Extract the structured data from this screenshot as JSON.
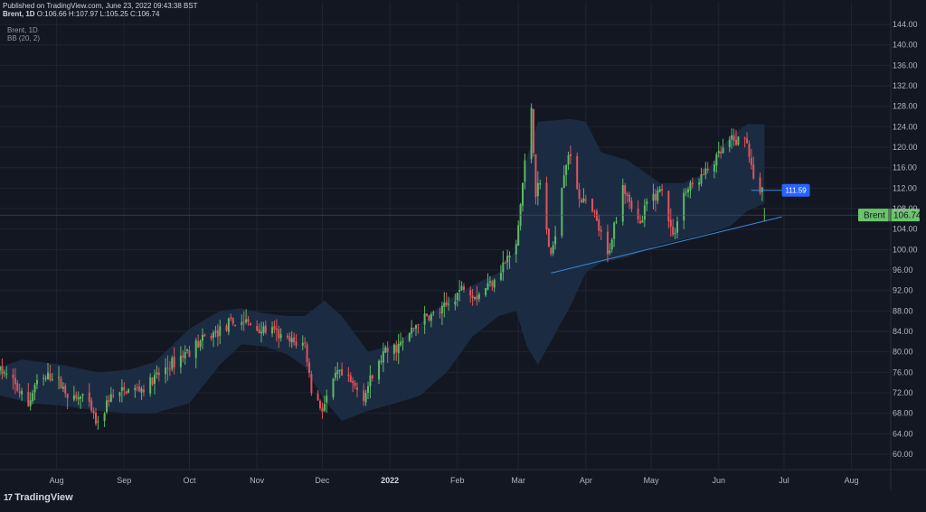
{
  "header": {
    "published": "Published on TradingView.com, June 23, 2022 09:43:38 BST",
    "symbol": "Brent, 1D",
    "ohlc": "O:106.66 H:107.97 L:105.25 C:106.74"
  },
  "legend": {
    "symbol": "Brent, 1D",
    "indicator": "BB (20, 2)"
  },
  "footer": {
    "logo_text": "TradingView",
    "logo_mark": "17"
  },
  "colors": {
    "background": "#131722",
    "grid": "#1f2433",
    "up": "#5fb866",
    "down": "#e0545c",
    "band_fill": "#1b2d44",
    "trendline": "#3a8be0",
    "axis_text": "#b2b5be",
    "price_label_bg": "#6cc46c",
    "level_label_bg": "#2962ff"
  },
  "chart_data": {
    "type": "candlestick",
    "symbol": "Brent",
    "timeframe": "1D",
    "indicator": "BB (20, 2)",
    "y_ticks": [
      "144.00",
      "140.00",
      "136.00",
      "132.00",
      "128.00",
      "124.00",
      "120.00",
      "116.00",
      "112.00",
      "108.00",
      "104.00",
      "100.00",
      "96.00",
      "92.00",
      "88.00",
      "84.00",
      "80.00",
      "76.00",
      "72.00",
      "68.00",
      "64.00",
      "60.00"
    ],
    "x_ticks": [
      {
        "label": "Aug",
        "date": "2021-08-01",
        "bold": false
      },
      {
        "label": "Sep",
        "date": "2021-09-01",
        "bold": false
      },
      {
        "label": "Oct",
        "date": "2021-10-01",
        "bold": false
      },
      {
        "label": "Nov",
        "date": "2021-11-01",
        "bold": false
      },
      {
        "label": "Dec",
        "date": "2021-12-01",
        "bold": false
      },
      {
        "label": "2022",
        "date": "2022-01-01",
        "bold": true
      },
      {
        "label": "Feb",
        "date": "2022-02-01",
        "bold": false
      },
      {
        "label": "Mar",
        "date": "2022-03-01",
        "bold": false
      },
      {
        "label": "Apr",
        "date": "2022-04-01",
        "bold": false
      },
      {
        "label": "May",
        "date": "2022-05-01",
        "bold": false
      },
      {
        "label": "Jun",
        "date": "2022-06-01",
        "bold": false
      },
      {
        "label": "Jul",
        "date": "2022-07-01",
        "bold": false
      },
      {
        "label": "Aug",
        "date": "2022-08-01",
        "bold": false
      }
    ],
    "x_range": [
      "2021-07-06",
      "2022-08-19"
    ],
    "y_range": [
      57,
      145.6
    ],
    "current_price": {
      "label": "Brent",
      "value": "106.74",
      "y": 106.74
    },
    "horizontal_level": {
      "value": "111.59",
      "y": 111.59,
      "from": "2022-06-16",
      "to": "2022-06-30"
    },
    "trendline": {
      "from": {
        "date": "2022-03-16",
        "y": 95.4
      },
      "to": {
        "date": "2022-06-30",
        "y": 106.4
      }
    },
    "price_path": [
      {
        "date": "2021-07-06",
        "price": 76.5
      },
      {
        "date": "2021-07-12",
        "price": 74.0
      },
      {
        "date": "2021-07-19",
        "price": 69.5
      },
      {
        "date": "2021-07-22",
        "price": 73.5
      },
      {
        "date": "2021-07-30",
        "price": 75.5
      },
      {
        "date": "2021-08-09",
        "price": 70.5
      },
      {
        "date": "2021-08-13",
        "price": 71.5
      },
      {
        "date": "2021-08-20",
        "price": 65.5
      },
      {
        "date": "2021-08-25",
        "price": 71.0
      },
      {
        "date": "2021-09-03",
        "price": 72.5
      },
      {
        "date": "2021-09-10",
        "price": 72.8
      },
      {
        "date": "2021-09-17",
        "price": 75.5
      },
      {
        "date": "2021-09-28",
        "price": 79.5
      },
      {
        "date": "2021-10-08",
        "price": 82.5
      },
      {
        "date": "2021-10-20",
        "price": 85.5
      },
      {
        "date": "2021-10-26",
        "price": 86.0
      },
      {
        "date": "2021-11-01",
        "price": 84.5
      },
      {
        "date": "2021-11-08",
        "price": 84.0
      },
      {
        "date": "2021-11-15",
        "price": 82.0
      },
      {
        "date": "2021-11-23",
        "price": 81.5
      },
      {
        "date": "2021-11-26",
        "price": 72.5
      },
      {
        "date": "2021-12-01",
        "price": 68.9
      },
      {
        "date": "2021-12-08",
        "price": 75.8
      },
      {
        "date": "2021-12-15",
        "price": 73.5
      },
      {
        "date": "2021-12-20",
        "price": 71.5
      },
      {
        "date": "2021-12-29",
        "price": 79.5
      },
      {
        "date": "2022-01-07",
        "price": 81.7
      },
      {
        "date": "2022-01-14",
        "price": 86.0
      },
      {
        "date": "2022-01-25",
        "price": 88.0
      },
      {
        "date": "2022-02-04",
        "price": 93.0
      },
      {
        "date": "2022-02-10",
        "price": 91.0
      },
      {
        "date": "2022-02-16",
        "price": 93.5
      },
      {
        "date": "2022-02-22",
        "price": 97.0
      },
      {
        "date": "2022-02-28",
        "price": 100.5
      },
      {
        "date": "2022-03-03",
        "price": 113.0
      },
      {
        "date": "2022-03-07",
        "price": 128.0
      },
      {
        "date": "2022-03-09",
        "price": 111.0
      },
      {
        "date": "2022-03-11",
        "price": 112.7
      },
      {
        "date": "2022-03-16",
        "price": 98.0
      },
      {
        "date": "2022-03-22",
        "price": 115.5
      },
      {
        "date": "2022-03-24",
        "price": 119.0
      },
      {
        "date": "2022-03-29",
        "price": 110.5
      },
      {
        "date": "2022-04-05",
        "price": 106.5
      },
      {
        "date": "2022-04-11",
        "price": 98.5
      },
      {
        "date": "2022-04-18",
        "price": 113.0
      },
      {
        "date": "2022-04-26",
        "price": 104.5
      },
      {
        "date": "2022-04-29",
        "price": 109.0
      },
      {
        "date": "2022-05-06",
        "price": 112.0
      },
      {
        "date": "2022-05-11",
        "price": 102.5
      },
      {
        "date": "2022-05-16",
        "price": 111.0
      },
      {
        "date": "2022-05-26",
        "price": 115.0
      },
      {
        "date": "2022-06-06",
        "price": 121.0
      },
      {
        "date": "2022-06-14",
        "price": 121.5
      },
      {
        "date": "2022-06-17",
        "price": 113.0
      },
      {
        "date": "2022-06-21",
        "price": 112.0
      },
      {
        "date": "2022-06-22",
        "price": 106.74
      }
    ],
    "bollinger": {
      "upper": [
        {
          "date": "2021-07-06",
          "y": 77.0
        },
        {
          "date": "2021-07-16",
          "y": 78.5
        },
        {
          "date": "2021-08-03",
          "y": 77.5
        },
        {
          "date": "2021-08-20",
          "y": 76.0
        },
        {
          "date": "2021-09-03",
          "y": 76.5
        },
        {
          "date": "2021-09-15",
          "y": 78.0
        },
        {
          "date": "2021-10-01",
          "y": 84.5
        },
        {
          "date": "2021-10-15",
          "y": 88.0
        },
        {
          "date": "2021-10-25",
          "y": 88.5
        },
        {
          "date": "2021-11-05",
          "y": 87.5
        },
        {
          "date": "2021-11-15",
          "y": 87.0
        },
        {
          "date": "2021-11-23",
          "y": 87.0
        },
        {
          "date": "2021-12-02",
          "y": 90.0
        },
        {
          "date": "2021-12-10",
          "y": 87.0
        },
        {
          "date": "2021-12-22",
          "y": 80.0
        },
        {
          "date": "2022-01-04",
          "y": 81.5
        },
        {
          "date": "2022-01-15",
          "y": 85.5
        },
        {
          "date": "2022-01-27",
          "y": 90.0
        },
        {
          "date": "2022-02-08",
          "y": 93.0
        },
        {
          "date": "2022-02-20",
          "y": 95.5
        },
        {
          "date": "2022-02-28",
          "y": 100.0
        },
        {
          "date": "2022-03-05",
          "y": 118.0
        },
        {
          "date": "2022-03-10",
          "y": 125.0
        },
        {
          "date": "2022-03-25",
          "y": 125.5
        },
        {
          "date": "2022-04-01",
          "y": 125.0
        },
        {
          "date": "2022-04-08",
          "y": 119.0
        },
        {
          "date": "2022-04-20",
          "y": 117.5
        },
        {
          "date": "2022-05-05",
          "y": 113.0
        },
        {
          "date": "2022-05-16",
          "y": 113.0
        },
        {
          "date": "2022-05-26",
          "y": 115.0
        },
        {
          "date": "2022-06-06",
          "y": 122.0
        },
        {
          "date": "2022-06-14",
          "y": 124.5
        },
        {
          "date": "2022-06-22",
          "y": 124.5
        }
      ],
      "lower": [
        {
          "date": "2021-07-06",
          "y": 71.5
        },
        {
          "date": "2021-07-20",
          "y": 70.0
        },
        {
          "date": "2021-08-03",
          "y": 69.5
        },
        {
          "date": "2021-08-20",
          "y": 68.5
        },
        {
          "date": "2021-09-03",
          "y": 68.0
        },
        {
          "date": "2021-09-15",
          "y": 68.0
        },
        {
          "date": "2021-10-01",
          "y": 70.0
        },
        {
          "date": "2021-10-15",
          "y": 77.5
        },
        {
          "date": "2021-10-25",
          "y": 81.5
        },
        {
          "date": "2021-11-05",
          "y": 81.0
        },
        {
          "date": "2021-11-15",
          "y": 79.5
        },
        {
          "date": "2021-11-23",
          "y": 77.0
        },
        {
          "date": "2021-12-02",
          "y": 70.5
        },
        {
          "date": "2021-12-10",
          "y": 66.5
        },
        {
          "date": "2021-12-22",
          "y": 68.5
        },
        {
          "date": "2022-01-04",
          "y": 70.0
        },
        {
          "date": "2022-01-15",
          "y": 71.5
        },
        {
          "date": "2022-01-27",
          "y": 76.0
        },
        {
          "date": "2022-02-08",
          "y": 83.0
        },
        {
          "date": "2022-02-20",
          "y": 87.0
        },
        {
          "date": "2022-02-28",
          "y": 88.0
        },
        {
          "date": "2022-03-05",
          "y": 81.0
        },
        {
          "date": "2022-03-10",
          "y": 77.5
        },
        {
          "date": "2022-03-25",
          "y": 89.0
        },
        {
          "date": "2022-04-01",
          "y": 95.5
        },
        {
          "date": "2022-04-08",
          "y": 97.5
        },
        {
          "date": "2022-04-20",
          "y": 98.5
        },
        {
          "date": "2022-05-05",
          "y": 101.0
        },
        {
          "date": "2022-05-16",
          "y": 102.0
        },
        {
          "date": "2022-05-26",
          "y": 103.0
        },
        {
          "date": "2022-06-06",
          "y": 104.5
        },
        {
          "date": "2022-06-14",
          "y": 107.5
        },
        {
          "date": "2022-06-22",
          "y": 109.0
        }
      ]
    }
  }
}
